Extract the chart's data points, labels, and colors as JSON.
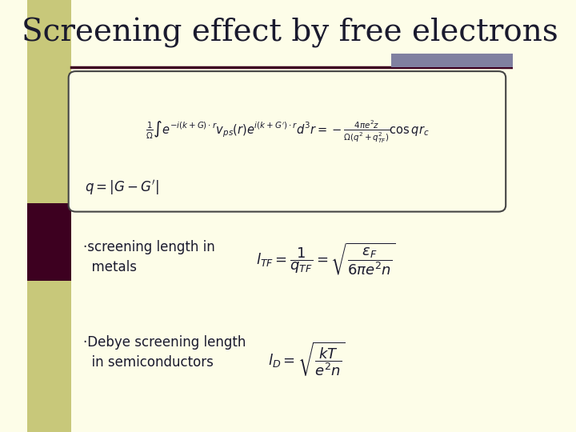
{
  "title": "Screening effect by free electrons",
  "title_fontsize": 28,
  "bg_color": "#FDFDE8",
  "sidebar_color": "#C8C87A",
  "title_bar_color": "#3D0020",
  "accent_bar_color": "#8080A0",
  "text_color": "#1a1a2e",
  "box_bg": "#FDFDE8",
  "box_border": "#444444",
  "main_eq": "$\\frac{1}{\\Omega}\\int e^{-i(k+G)\\cdot r}v_{ps}(r)e^{i(k+G')\\cdot r}d^3r = -\\frac{4\\pi e^2 z}{\\Omega(q^2+q_{TF}^2)}\\cos qr_c$",
  "sub_eq": "$q = |G - G'|$",
  "bullet1_text": "·screening length in\n  metals",
  "bullet1_eq": "$l_{TF} = \\dfrac{1}{q_{TF}} = \\sqrt{\\dfrac{\\varepsilon_F}{6\\pi e^2 n}}$",
  "bullet2_text": "·Debye screening length\n  in semiconductors",
  "bullet2_eq": "$l_D = \\sqrt{\\dfrac{kT}{e^2 n}}$"
}
